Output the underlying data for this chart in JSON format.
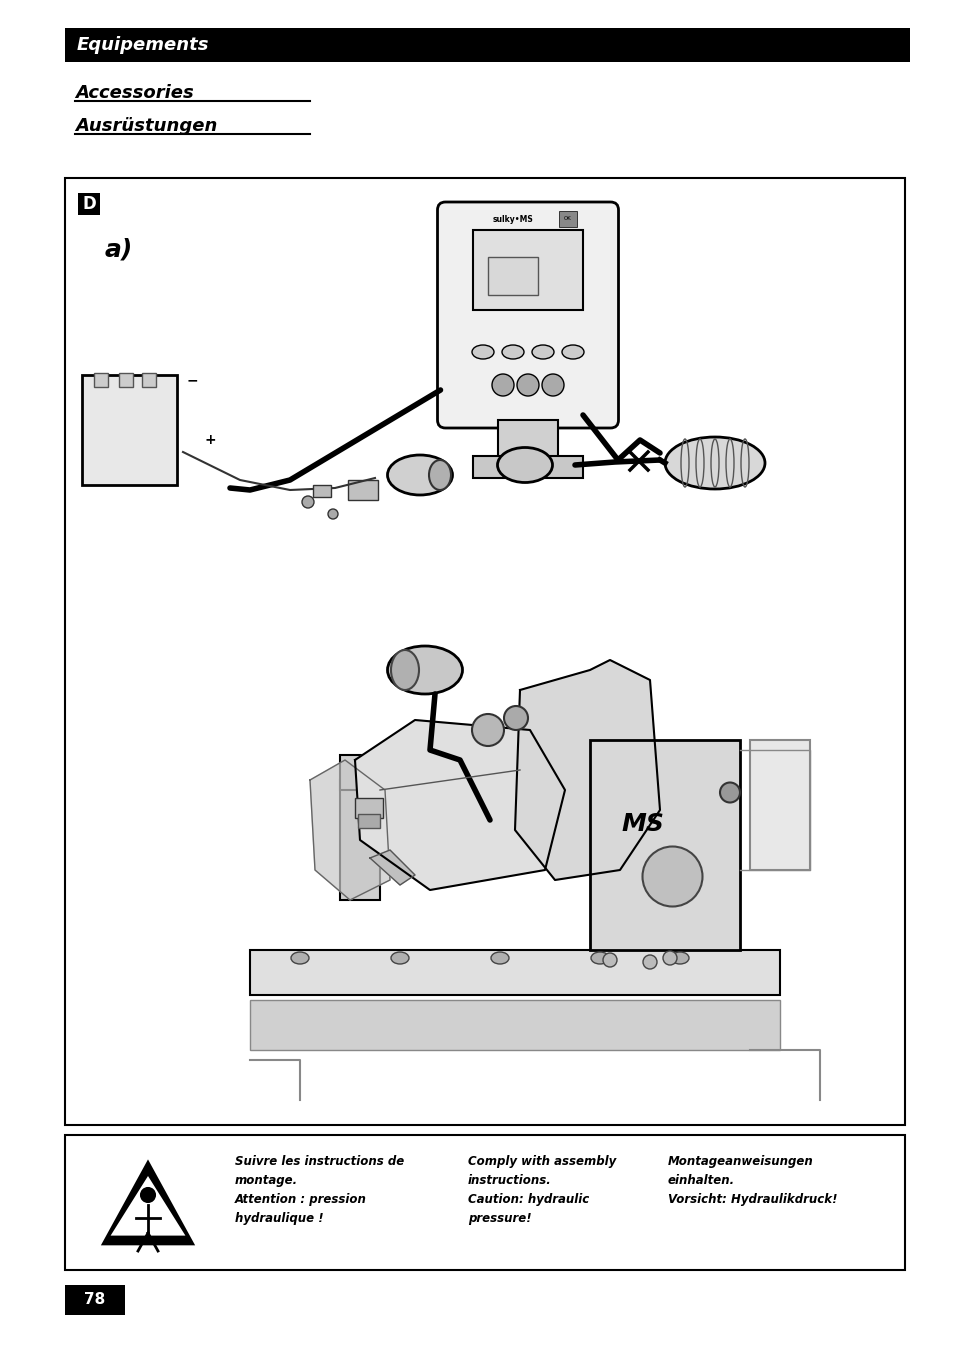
{
  "page_bg": "#ffffff",
  "header_bar_color": "#000000",
  "header_bar_text": "Equipements",
  "header_bar_text_color": "#ffffff",
  "subheader1": "Accessories",
  "subheader2": "Ausrüstungen",
  "label_D": "D",
  "label_a": "a)",
  "warn_text1_fr": "Suivre les instructions de\nmontage.\nAttention : pression\nhydraulique !",
  "warn_text2_en": "Comply with assembly\ninstructions.\nCaution: hydraulic\npressure!",
  "warn_text3_de": "Montageanweisungen\neinhalten.\nVorsicht: Hydraulikdruck!",
  "page_num": "78",
  "page_num_bg": "#000000",
  "page_num_text_color": "#ffffff"
}
